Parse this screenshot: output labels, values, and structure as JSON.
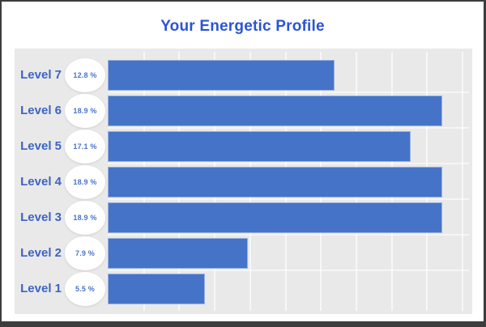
{
  "window": {
    "background": "#ffffff",
    "border_color": "#3d3d3d"
  },
  "chart_data": {
    "type": "bar",
    "orientation": "horizontal",
    "title": "Your Energetic Profile",
    "categories": [
      "Level 7",
      "Level 6",
      "Level 5",
      "Level 4",
      "Level 3",
      "Level 2",
      "Level 1"
    ],
    "values": [
      12.8,
      18.9,
      17.1,
      18.9,
      18.9,
      7.9,
      5.5
    ],
    "value_labels": [
      "12.8 %",
      "18.9 %",
      "17.1 %",
      "18.9 %",
      "18.9 %",
      "7.9 %",
      "5.5 %"
    ],
    "xlim": [
      0,
      20
    ],
    "gridline_interval_pct": 2,
    "grid": true,
    "legend": "none",
    "axis_tick_labels_visible": false,
    "colors": {
      "bar": "#4573c7",
      "plot_background": "#e9e9e9",
      "title_text": "#2b55d6",
      "category_label_text": "#3c64c0",
      "badge_text": "#4a74c8",
      "badge_background": "#ffffff",
      "gridline": "rgba(255,255,255,0.65)"
    }
  }
}
